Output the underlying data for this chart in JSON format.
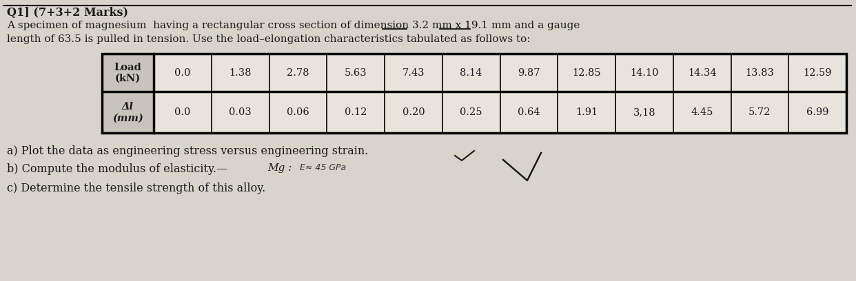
{
  "title_line1": "Q1] (7+3+2 Marks)",
  "title_line2": "A specimen of magnesium  having a rectangular cross section of dimension 3.2 mm x 19.1 mm and a gauge",
  "title_line3": "length of 63.5 is pulled in tension. Use the load–elongation characteristics tabulated as follows to:",
  "load_values": [
    "0.0",
    "1.38",
    "2.78",
    "5.63",
    "7.43",
    "8.14",
    "9.87",
    "12.85",
    "14.10",
    "14.34",
    "13.83",
    "12.59"
  ],
  "delta_values": [
    "0.0",
    "0.03",
    "0.06",
    "0.12",
    "0.20",
    "0.25",
    "0.64",
    "1.91",
    "3,18",
    "4.45",
    "5.72",
    "6.99"
  ],
  "question_a": "a) Plot the data as engineering stress versus engineering strain.",
  "question_b": "b) Compute the modulus of elasticity.—",
  "question_b2": "Mg :",
  "question_b3": "  E≈ 45 GPa",
  "question_c": "c) Determine the tensile strength of this alloy.",
  "bg_color": "#d8d4cc",
  "text_color": "#1a1a1a",
  "table_bg_light": "#e8e4dc",
  "table_bg_dark": "#c8c4bc"
}
